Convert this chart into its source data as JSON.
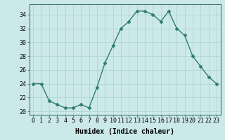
{
  "x": [
    0,
    1,
    2,
    3,
    4,
    5,
    6,
    7,
    8,
    9,
    10,
    11,
    12,
    13,
    14,
    15,
    16,
    17,
    18,
    19,
    20,
    21,
    22,
    23
  ],
  "y": [
    24,
    24,
    21.5,
    21,
    20.5,
    20.5,
    21,
    20.5,
    23.5,
    27,
    29.5,
    32,
    33,
    34.5,
    34.5,
    34,
    33,
    34.5,
    32,
    31,
    28,
    26.5,
    25,
    24
  ],
  "line_color": "#2e7d6e",
  "marker": "D",
  "markersize": 2.5,
  "linewidth": 1.0,
  "xlabel": "Humidex (Indice chaleur)",
  "xlim": [
    -0.5,
    23.5
  ],
  "ylim": [
    19.5,
    35.5
  ],
  "yticks": [
    20,
    22,
    24,
    26,
    28,
    30,
    32,
    34
  ],
  "xticks": [
    0,
    1,
    2,
    3,
    4,
    5,
    6,
    7,
    8,
    9,
    10,
    11,
    12,
    13,
    14,
    15,
    16,
    17,
    18,
    19,
    20,
    21,
    22,
    23
  ],
  "xtick_labels": [
    "0",
    "1",
    "2",
    "3",
    "4",
    "5",
    "6",
    "7",
    "8",
    "9",
    "10",
    "11",
    "12",
    "13",
    "14",
    "15",
    "16",
    "17",
    "18",
    "19",
    "20",
    "21",
    "22",
    "23"
  ],
  "bg_color": "#cce9e9",
  "grid_color": "#b0d4d4",
  "label_fontsize": 7,
  "tick_fontsize": 6
}
